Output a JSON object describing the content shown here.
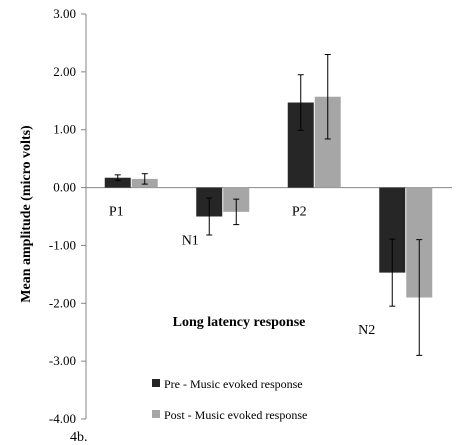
{
  "figure_label": "4b.",
  "chart_data": {
    "type": "bar",
    "title": "",
    "xlabel": "Long latency response",
    "ylabel": "Mean amplitude (micro volts)",
    "ylim": [
      -4.0,
      3.0
    ],
    "y_ticks": [
      "3.00",
      "2.00",
      "1.00",
      "0.00",
      "-1.00",
      "-2.00",
      "-3.00",
      "-4.00"
    ],
    "y_tick_values": [
      3,
      2,
      1,
      0,
      -1,
      -2,
      -3,
      -4
    ],
    "categories": [
      "P1",
      "N1",
      "P2",
      "N2"
    ],
    "series": [
      {
        "name": "Pre - Music evoked response",
        "color": "#262626",
        "values": [
          0.17,
          -0.5,
          1.47,
          -1.47
        ],
        "errors": [
          0.05,
          0.32,
          0.48,
          0.58
        ]
      },
      {
        "name": "Post - Music evoked response",
        "color": "#a6a6a6",
        "values": [
          0.15,
          -0.42,
          1.57,
          -1.9
        ],
        "errors": [
          0.09,
          0.22,
          0.73,
          1.0
        ]
      }
    ],
    "grid": false,
    "legend_position": "bottom-center"
  }
}
